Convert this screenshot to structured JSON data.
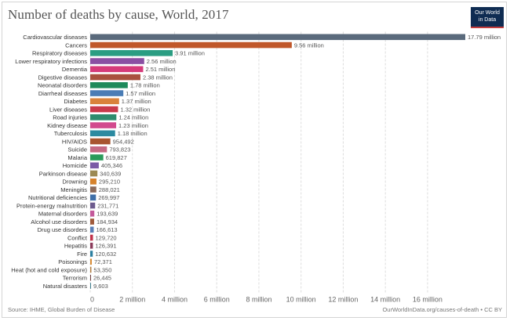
{
  "header": {
    "title": "Number of deaths by cause, World, 2017",
    "logo_line1": "Our World",
    "logo_line2": "in Data"
  },
  "footer": {
    "source": "Source: IHME, Global Burden of Disease",
    "credit": "OurWorldInData.org/causes-of-death • CC BY"
  },
  "chart_data": {
    "type": "bar",
    "orientation": "horizontal",
    "title": "Number of deaths by cause, World, 2017",
    "xlabel": "",
    "ylabel": "",
    "xlim": [
      0,
      18000000
    ],
    "grid": true,
    "ticks": [
      {
        "value": 0,
        "label": "0"
      },
      {
        "value": 2000000,
        "label": "2 million"
      },
      {
        "value": 4000000,
        "label": "4 million"
      },
      {
        "value": 6000000,
        "label": "6 million"
      },
      {
        "value": 8000000,
        "label": "8 million"
      },
      {
        "value": 10000000,
        "label": "10 million"
      },
      {
        "value": 12000000,
        "label": "12 million"
      },
      {
        "value": 14000000,
        "label": "14 million"
      },
      {
        "value": 16000000,
        "label": "16 million"
      }
    ],
    "bars": [
      {
        "category": "Cardiovascular diseases",
        "value": 17790000,
        "label": "17.79 million",
        "color": "#5a6a7c"
      },
      {
        "category": "Cancers",
        "value": 9560000,
        "label": "9.56 million",
        "color": "#c0572a"
      },
      {
        "category": "Respiratory diseases",
        "value": 3910000,
        "label": "3.91 million",
        "color": "#2a9d82"
      },
      {
        "category": "Lower respiratory infections",
        "value": 2560000,
        "label": "2.56 million",
        "color": "#8a4fa3"
      },
      {
        "category": "Dementia",
        "value": 2510000,
        "label": "2.51 million",
        "color": "#d63a7a"
      },
      {
        "category": "Digestive diseases",
        "value": 2380000,
        "label": "2.38 million",
        "color": "#a9503e"
      },
      {
        "category": "Neonatal disorders",
        "value": 1780000,
        "label": "1.78 million",
        "color": "#1f8a5b"
      },
      {
        "category": "Diarrheal diseases",
        "value": 1570000,
        "label": "1.57 million",
        "color": "#4a7cb5"
      },
      {
        "category": "Diabetes",
        "value": 1370000,
        "label": "1.37 million",
        "color": "#d9823b"
      },
      {
        "category": "Liver diseases",
        "value": 1320000,
        "label": "1.32 million",
        "color": "#c93a4b"
      },
      {
        "category": "Road injuries",
        "value": 1240000,
        "label": "1.24 million",
        "color": "#2e8c6e"
      },
      {
        "category": "Kidney disease",
        "value": 1230000,
        "label": "1.23 million",
        "color": "#d24a8e"
      },
      {
        "category": "Tuberculosis",
        "value": 1180000,
        "label": "1.18 million",
        "color": "#2c8aa0"
      },
      {
        "category": "HIV/AIDS",
        "value": 954492,
        "label": "954,492",
        "color": "#a8552f"
      },
      {
        "category": "Suicide",
        "value": 793823,
        "label": "793,823",
        "color": "#c56a83"
      },
      {
        "category": "Malaria",
        "value": 619827,
        "label": "619,827",
        "color": "#2a9a5a"
      },
      {
        "category": "Homicide",
        "value": 405346,
        "label": "405,346",
        "color": "#7b5ba6"
      },
      {
        "category": "Parkinson disease",
        "value": 340639,
        "label": "340,639",
        "color": "#9c8a54"
      },
      {
        "category": "Drowning",
        "value": 295210,
        "label": "295,210",
        "color": "#d6822c"
      },
      {
        "category": "Meningitis",
        "value": 288021,
        "label": "288,021",
        "color": "#8b6a5a"
      },
      {
        "category": "Nutritional deficiencies",
        "value": 269997,
        "label": "269,997",
        "color": "#3f6fa8"
      },
      {
        "category": "Protein-energy malnutrition",
        "value": 231771,
        "label": "231,771",
        "color": "#6d5b8e"
      },
      {
        "category": "Maternal disorders",
        "value": 193639,
        "label": "193,639",
        "color": "#c45a9b"
      },
      {
        "category": "Alcohol use disorders",
        "value": 184934,
        "label": "184,934",
        "color": "#a05a3a"
      },
      {
        "category": "Drug use disorders",
        "value": 166613,
        "label": "166,613",
        "color": "#5a7fb8"
      },
      {
        "category": "Conflict",
        "value": 129720,
        "label": "129,720",
        "color": "#c2324a"
      },
      {
        "category": "Hepatitis",
        "value": 126391,
        "label": "126,391",
        "color": "#8a3a5a"
      },
      {
        "category": "Fire",
        "value": 120632,
        "label": "120,632",
        "color": "#2a7fa0"
      },
      {
        "category": "Poisonings",
        "value": 72371,
        "label": "72,371",
        "color": "#d6882e"
      },
      {
        "category": "Heat (hot and cold exposure)",
        "value": 53350,
        "label": "53,350",
        "color": "#b07a3a"
      },
      {
        "category": "Terrorism",
        "value": 26445,
        "label": "26,445",
        "color": "#6a3a3a"
      },
      {
        "category": "Natural disasters",
        "value": 9603,
        "label": "9,603",
        "color": "#3a7a8a"
      }
    ]
  }
}
